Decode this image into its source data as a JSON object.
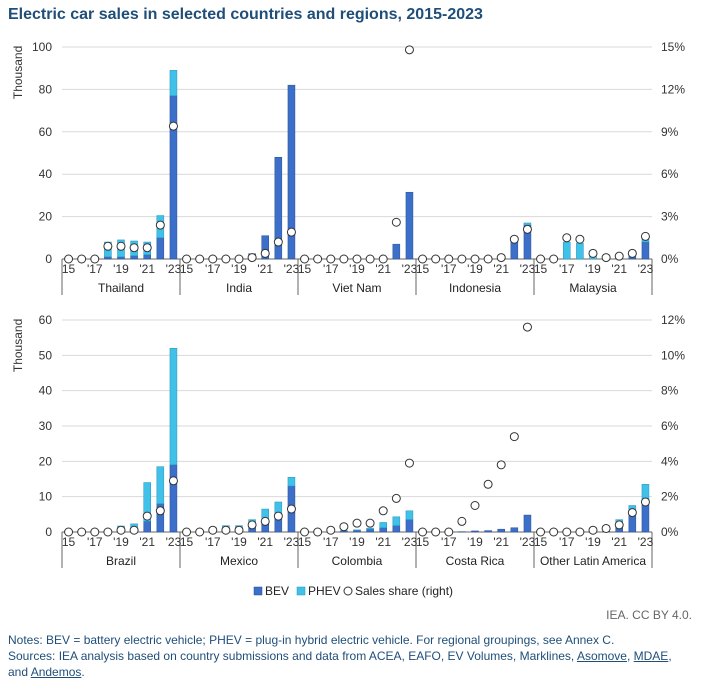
{
  "title": "Electric car sales in selected countries and regions, 2015-2023",
  "credit": "IEA. CC BY 4.0.",
  "notes": "Notes: BEV = battery electric vehicle; PHEV = plug-in hybrid electric vehicle. For regional groupings, see Annex C.",
  "sources_prefix": "Sources: IEA analysis based on country submissions and data from ACEA, EAFO, EV Volumes, Marklines, ",
  "sources_links": [
    "Asomove",
    "MDAE",
    "Andemos"
  ],
  "sources_sep": ", ",
  "sources_and": "and ",
  "sources_end": ".",
  "colors": {
    "BEV": "#3b6fc9",
    "PHEV": "#3fc1ea",
    "share_fill": "#ffffff",
    "share_stroke": "#333333",
    "grid": "#d9d9d9"
  },
  "chart_data": [
    {
      "type": "bar",
      "stacked": true,
      "years": [
        "15",
        "16",
        "17",
        "18",
        "19",
        "20",
        "21",
        "22",
        "23"
      ],
      "year_tick_labels": [
        "15",
        "'17",
        "'19",
        "'21",
        "'23"
      ],
      "ylabel": "Thousand",
      "ylim": [
        0,
        100
      ],
      "yticks": [
        "0",
        "20",
        "40",
        "60",
        "80",
        "100"
      ],
      "y2lim": [
        0,
        15
      ],
      "y2ticks": [
        "0%",
        "3%",
        "6%",
        "9%",
        "12%",
        "15%"
      ],
      "grid": true,
      "groups": [
        {
          "name": "Thailand",
          "BEV": [
            0,
            0,
            0,
            1,
            1,
            1.5,
            2,
            10,
            77
          ],
          "PHEV": [
            0,
            0,
            0,
            7,
            8,
            7,
            6,
            10.5,
            12
          ],
          "share": [
            0,
            0,
            0,
            0.9,
            0.9,
            0.8,
            0.8,
            2.4,
            9.4
          ]
        },
        {
          "name": "India",
          "BEV": [
            0,
            0,
            0,
            0,
            0,
            2.5,
            11,
            48,
            82
          ],
          "PHEV": [
            0,
            0,
            0,
            0,
            0,
            0,
            0,
            0,
            0
          ],
          "share": [
            0,
            0,
            0,
            0,
            0,
            0.1,
            0.4,
            1.2,
            1.9
          ]
        },
        {
          "name": "Viet Nam",
          "BEV": [
            0,
            0,
            0,
            0,
            0,
            0,
            0,
            7,
            31.5
          ],
          "PHEV": [
            0,
            0,
            0,
            0,
            0,
            0,
            0,
            0,
            0
          ],
          "share": [
            0,
            0,
            0,
            0,
            0,
            0,
            0,
            2.6,
            14.8
          ]
        },
        {
          "name": "Indonesia",
          "BEV": [
            0,
            0,
            0,
            0,
            0,
            0,
            0.5,
            9,
            16
          ],
          "PHEV": [
            0,
            0,
            0,
            0,
            0,
            0,
            0,
            1,
            1
          ],
          "share": [
            0,
            0,
            0,
            0,
            0,
            0,
            0.1,
            1.4,
            2.1
          ]
        },
        {
          "name": "Malaysia",
          "BEV": [
            0,
            0,
            0,
            0,
            0,
            0,
            0,
            1,
            8
          ],
          "PHEV": [
            0,
            0,
            8,
            7.5,
            1.5,
            0.3,
            0.3,
            0.3,
            1.5
          ],
          "share": [
            0,
            0,
            1.5,
            1.4,
            0.4,
            0.1,
            0.2,
            0.4,
            1.6
          ]
        }
      ],
      "legend": [
        "BEV",
        "PHEV",
        "Sales share (right)"
      ]
    },
    {
      "type": "bar",
      "stacked": true,
      "years": [
        "15",
        "16",
        "17",
        "18",
        "19",
        "20",
        "21",
        "22",
        "23"
      ],
      "year_tick_labels": [
        "15",
        "'17",
        "'19",
        "'21",
        "'23"
      ],
      "ylabel": "Thousand",
      "ylim": [
        0,
        60
      ],
      "yticks": [
        "0",
        "10",
        "20",
        "30",
        "40",
        "50",
        "60"
      ],
      "y2lim": [
        0,
        12
      ],
      "y2ticks": [
        "0%",
        "2%",
        "4%",
        "6%",
        "8%",
        "10%",
        "12%"
      ],
      "grid": true,
      "groups": [
        {
          "name": "Brazil",
          "BEV": [
            0,
            0,
            0,
            0,
            0.5,
            0.8,
            3,
            8,
            19
          ],
          "PHEV": [
            0,
            0,
            0,
            0.3,
            1.2,
            1.5,
            11,
            10.5,
            33
          ],
          "share": [
            0,
            0,
            0,
            0,
            0.1,
            0.1,
            0.9,
            1.2,
            2.9
          ]
        },
        {
          "name": "Mexico",
          "BEV": [
            0,
            0,
            0.5,
            0.8,
            0.8,
            1.5,
            3,
            4,
            13
          ],
          "PHEV": [
            0,
            0,
            0.8,
            1,
            1,
            2,
            3.5,
            4.5,
            2.5
          ],
          "share": [
            0,
            0,
            0.1,
            0.1,
            0.1,
            0.4,
            0.6,
            0.9,
            1.3
          ]
        },
        {
          "name": "Colombia",
          "BEV": [
            0,
            0,
            0,
            0.3,
            0.5,
            0.8,
            1.2,
            1.8,
            3.5
          ],
          "PHEV": [
            0,
            0,
            0,
            0.1,
            0.1,
            0.3,
            1.5,
            2.5,
            2.5
          ],
          "share": [
            0,
            0,
            0.1,
            0.3,
            0.5,
            0.5,
            1.2,
            1.9,
            3.9
          ]
        },
        {
          "name": "Costa Rica",
          "BEV": [
            0,
            0,
            0.1,
            0.1,
            0.3,
            0.4,
            0.8,
            1.2,
            4.8
          ],
          "PHEV": [
            0,
            0,
            0,
            0,
            0,
            0,
            0,
            0,
            0
          ],
          "share": [
            0,
            0,
            0,
            0.6,
            1.5,
            2.7,
            3.8,
            5.4,
            11.6
          ]
        },
        {
          "name": "Other Latin America",
          "BEV": [
            0,
            0,
            0,
            0,
            0.2,
            0.5,
            2,
            5,
            9
          ],
          "PHEV": [
            0,
            0,
            0,
            0,
            0,
            0.3,
            1.5,
            2.5,
            4.5
          ],
          "share": [
            0,
            0,
            0,
            0,
            0.1,
            0.2,
            0.4,
            1.1,
            1.7
          ]
        }
      ]
    }
  ]
}
